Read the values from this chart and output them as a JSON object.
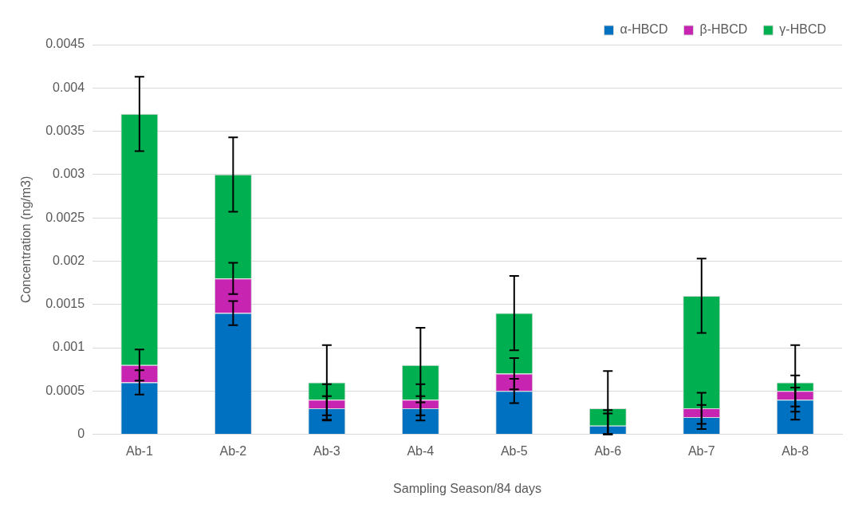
{
  "chart_data": {
    "type": "bar",
    "stacked": true,
    "xlabel": "Sampling Season/84 days",
    "ylabel": "Concentration (ng/m3)",
    "categories": [
      "Ab-1",
      "Ab-2",
      "Ab-3",
      "Ab-4",
      "Ab-5",
      "Ab-6",
      "Ab-7",
      "Ab-8"
    ],
    "series": [
      {
        "name": "α-HBCD",
        "color": "#0070c0",
        "values": [
          0.0006,
          0.0014,
          0.0003,
          0.0003,
          0.0005,
          0.0001,
          0.0002,
          0.0004
        ],
        "errors": [
          0.00014,
          0.00014,
          0.00014,
          0.00014,
          0.00014,
          [
            0,
            0.00024
          ],
          0.00014,
          0.00014
        ]
      },
      {
        "name": "β-HBCD",
        "color": "#c724b1",
        "values": [
          0.0002,
          0.0004,
          0.0001,
          0.0001,
          0.0002,
          0,
          0.0001,
          0.0001
        ],
        "errors": [
          0.00018,
          0.00018,
          0.00018,
          0.00018,
          0.00018,
          [
            0,
            0.00028
          ],
          0.00018,
          0.00018
        ]
      },
      {
        "name": "γ-HBCD",
        "color": "#00b050",
        "values": [
          0.0029,
          0.0012,
          0.0002,
          0.0004,
          0.0007,
          0.0002,
          0.0013,
          0.0001
        ],
        "errors": [
          0.00043,
          0.00043,
          0.00043,
          0.00043,
          0.00043,
          [
            0,
            0.00073
          ],
          0.00043,
          0.00043
        ]
      }
    ],
    "ylim": [
      0,
      0.0045
    ],
    "yticks": [
      0,
      0.0005,
      0.001,
      0.0015,
      0.002,
      0.0025,
      0.003,
      0.0035,
      0.004,
      0.0045
    ],
    "grid": "y",
    "legend": "top right"
  }
}
